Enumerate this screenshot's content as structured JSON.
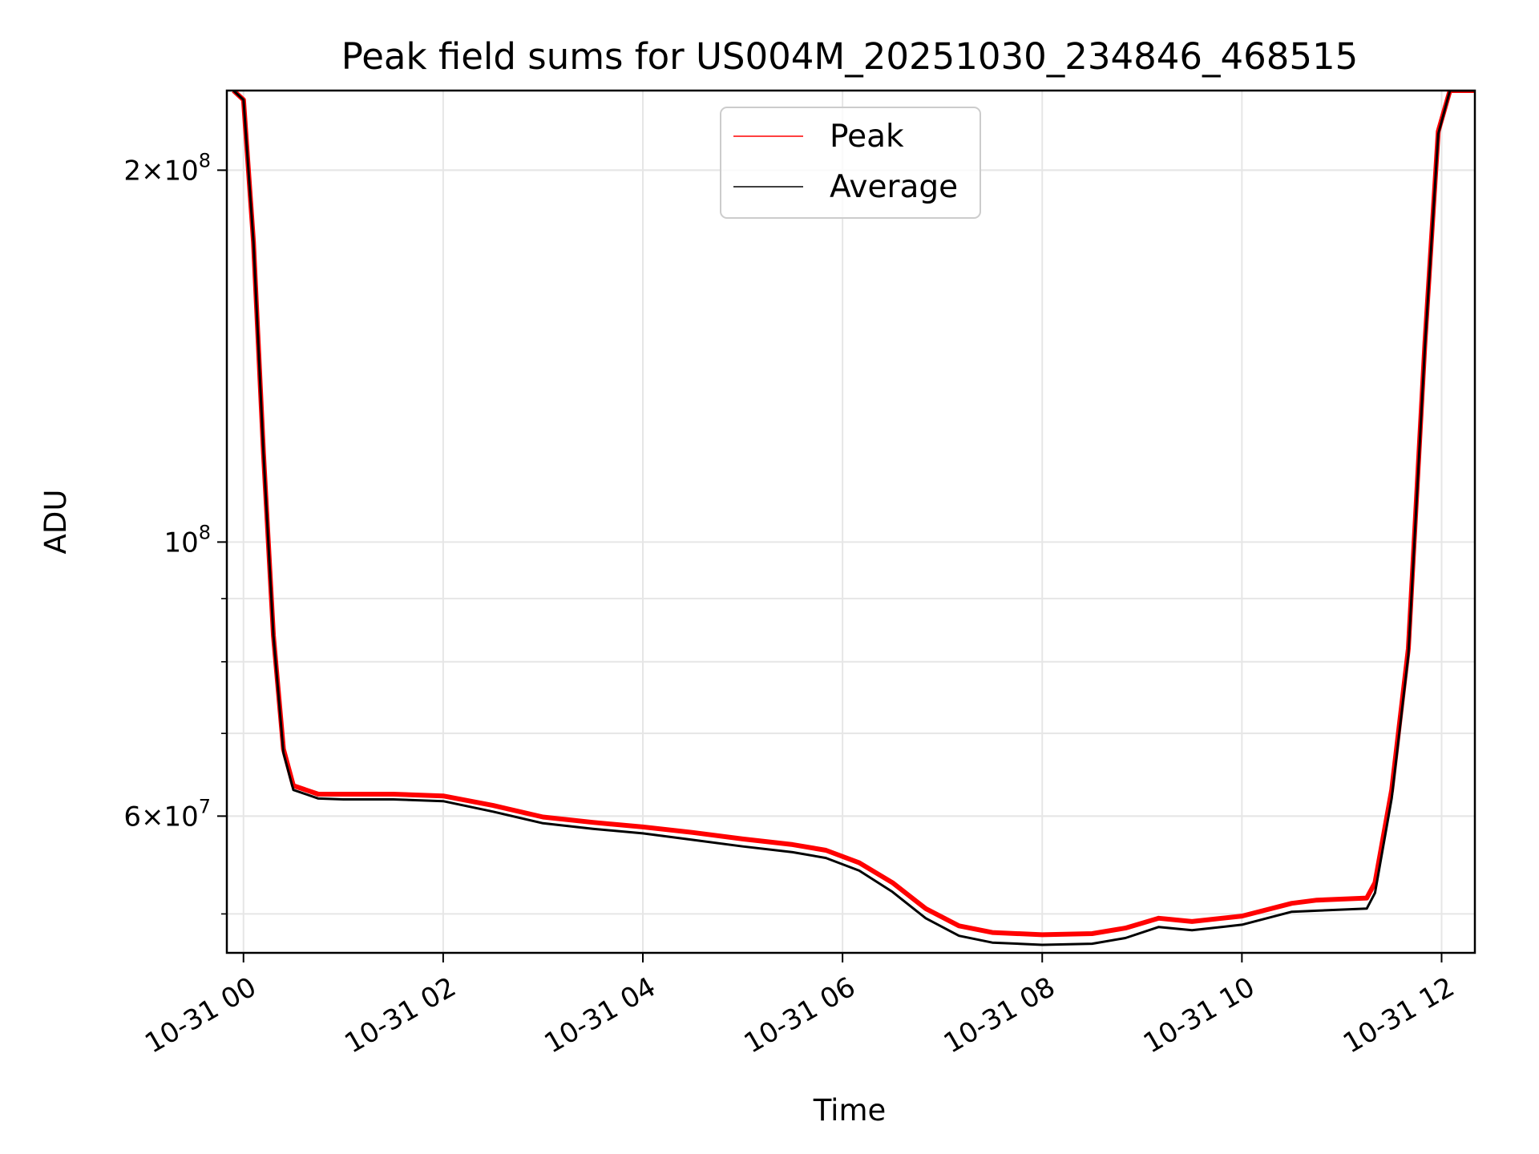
{
  "chart_data": {
    "type": "line",
    "title": "Peak field sums for US004M_20251030_234846_468515",
    "xlabel": "Time",
    "ylabel": "ADU",
    "x_range": [
      "2025-10-30T23:50",
      "2025-10-31T12:20"
    ],
    "y_range": [
      46500000,
      232000000
    ],
    "y_scale": "log",
    "grid": true,
    "legend_placement": "upper center",
    "x_ticks": [
      "10-31 00",
      "10-31 02",
      "10-31 04",
      "10-31 06",
      "10-31 08",
      "10-31 10",
      "10-31 12"
    ],
    "x_tick_values": [
      "2025-10-31T00:00",
      "2025-10-31T02:00",
      "2025-10-31T04:00",
      "2025-10-31T06:00",
      "2025-10-31T08:00",
      "2025-10-31T10:00",
      "2025-10-31T12:00"
    ],
    "y_major_ticks": [
      {
        "value": 200000000,
        "mantissa": "2",
        "exponent": "8"
      },
      {
        "value": 100000000,
        "mantissa": "",
        "exponent": "8"
      },
      {
        "value": 60000000,
        "mantissa": "6",
        "exponent": "7"
      }
    ],
    "y_minor_ticks": [
      50000000,
      60000000,
      70000000,
      80000000,
      90000000,
      200000000
    ],
    "series": [
      {
        "name": "Peak",
        "color": "#ff0000",
        "points": [
          [
            "2025-10-30T23:54",
            232000000
          ],
          [
            "2025-10-31T00:00",
            228000000
          ],
          [
            "2025-10-31T00:06",
            175000000
          ],
          [
            "2025-10-31T00:12",
            118000000
          ],
          [
            "2025-10-31T00:18",
            84000000
          ],
          [
            "2025-10-31T00:24",
            68000000
          ],
          [
            "2025-10-31T00:30",
            63500000
          ],
          [
            "2025-10-31T00:45",
            62500000
          ],
          [
            "2025-10-31T01:00",
            62500000
          ],
          [
            "2025-10-31T01:30",
            62500000
          ],
          [
            "2025-10-31T02:00",
            62300000
          ],
          [
            "2025-10-31T02:30",
            61200000
          ],
          [
            "2025-10-31T03:00",
            59900000
          ],
          [
            "2025-10-31T03:30",
            59300000
          ],
          [
            "2025-10-31T04:00",
            58800000
          ],
          [
            "2025-10-31T04:30",
            58200000
          ],
          [
            "2025-10-31T05:00",
            57500000
          ],
          [
            "2025-10-31T05:30",
            56900000
          ],
          [
            "2025-10-31T05:50",
            56300000
          ],
          [
            "2025-10-31T06:10",
            55000000
          ],
          [
            "2025-10-31T06:30",
            53000000
          ],
          [
            "2025-10-31T06:50",
            50500000
          ],
          [
            "2025-10-31T07:10",
            48900000
          ],
          [
            "2025-10-31T07:30",
            48300000
          ],
          [
            "2025-10-31T08:00",
            48100000
          ],
          [
            "2025-10-31T08:30",
            48200000
          ],
          [
            "2025-10-31T08:50",
            48700000
          ],
          [
            "2025-10-31T09:10",
            49600000
          ],
          [
            "2025-10-31T09:30",
            49300000
          ],
          [
            "2025-10-31T10:00",
            49800000
          ],
          [
            "2025-10-31T10:30",
            51000000
          ],
          [
            "2025-10-31T10:45",
            51300000
          ],
          [
            "2025-10-31T11:15",
            51500000
          ],
          [
            "2025-10-31T11:20",
            53000000
          ],
          [
            "2025-10-31T11:30",
            63000000
          ],
          [
            "2025-10-31T11:40",
            82000000
          ],
          [
            "2025-10-31T11:50",
            145000000
          ],
          [
            "2025-10-31T11:58",
            215000000
          ],
          [
            "2025-10-31T12:05",
            232000000
          ],
          [
            "2025-10-31T12:20",
            232000000
          ]
        ]
      },
      {
        "name": "Average",
        "color": "#000000",
        "points": [
          [
            "2025-10-30T23:54",
            232000000
          ],
          [
            "2025-10-31T00:00",
            228000000
          ],
          [
            "2025-10-31T00:06",
            175000000
          ],
          [
            "2025-10-31T00:12",
            118000000
          ],
          [
            "2025-10-31T00:18",
            84000000
          ],
          [
            "2025-10-31T00:24",
            67500000
          ],
          [
            "2025-10-31T00:30",
            63000000
          ],
          [
            "2025-10-31T00:45",
            62000000
          ],
          [
            "2025-10-31T01:00",
            61900000
          ],
          [
            "2025-10-31T01:30",
            61900000
          ],
          [
            "2025-10-31T02:00",
            61700000
          ],
          [
            "2025-10-31T02:30",
            60500000
          ],
          [
            "2025-10-31T03:00",
            59200000
          ],
          [
            "2025-10-31T03:30",
            58600000
          ],
          [
            "2025-10-31T04:00",
            58100000
          ],
          [
            "2025-10-31T04:30",
            57400000
          ],
          [
            "2025-10-31T05:00",
            56700000
          ],
          [
            "2025-10-31T05:30",
            56100000
          ],
          [
            "2025-10-31T05:50",
            55500000
          ],
          [
            "2025-10-31T06:10",
            54200000
          ],
          [
            "2025-10-31T06:30",
            52100000
          ],
          [
            "2025-10-31T06:50",
            49600000
          ],
          [
            "2025-10-31T07:10",
            48000000
          ],
          [
            "2025-10-31T07:30",
            47400000
          ],
          [
            "2025-10-31T08:00",
            47200000
          ],
          [
            "2025-10-31T08:30",
            47300000
          ],
          [
            "2025-10-31T08:50",
            47800000
          ],
          [
            "2025-10-31T09:10",
            48800000
          ],
          [
            "2025-10-31T09:30",
            48500000
          ],
          [
            "2025-10-31T10:00",
            49000000
          ],
          [
            "2025-10-31T10:30",
            50200000
          ],
          [
            "2025-10-31T10:45",
            50300000
          ],
          [
            "2025-10-31T11:15",
            50500000
          ],
          [
            "2025-10-31T11:20",
            52000000
          ],
          [
            "2025-10-31T11:30",
            62000000
          ],
          [
            "2025-10-31T11:40",
            81000000
          ],
          [
            "2025-10-31T11:50",
            144000000
          ],
          [
            "2025-10-31T11:58",
            214000000
          ],
          [
            "2025-10-31T12:05",
            232000000
          ],
          [
            "2025-10-31T12:20",
            232000000
          ]
        ]
      }
    ]
  }
}
